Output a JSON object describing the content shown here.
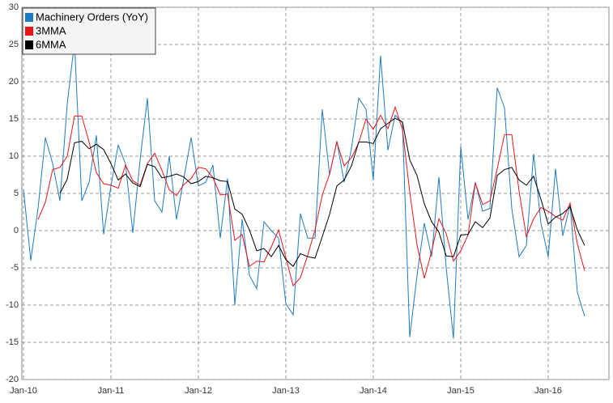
{
  "chart_data": {
    "type": "line",
    "categories": [
      "Jan-10",
      null,
      null,
      null,
      null,
      null,
      null,
      null,
      null,
      null,
      null,
      null,
      "Jan-11",
      null,
      null,
      null,
      null,
      null,
      null,
      null,
      null,
      null,
      null,
      null,
      "Jan-12",
      null,
      null,
      null,
      null,
      null,
      null,
      null,
      null,
      null,
      null,
      null,
      "Jan-13",
      null,
      null,
      null,
      null,
      null,
      null,
      null,
      null,
      null,
      null,
      null,
      "Jan-14",
      null,
      null,
      null,
      null,
      null,
      null,
      null,
      null,
      null,
      null,
      null,
      "Jan-15",
      null,
      null,
      null,
      null,
      null,
      null,
      null,
      null,
      null,
      null,
      null,
      "Jan-16",
      null,
      null,
      null,
      null,
      null
    ],
    "series": [
      {
        "name": "Machinery Orders (YoY)",
        "color": "#1f7bc1",
        "width": 1,
        "values": [
          5.5,
          -4,
          3,
          12.5,
          9,
          4,
          17,
          25.3,
          4,
          6.5,
          12.8,
          -0.5,
          6,
          11.5,
          9,
          -0.3,
          9.5,
          17.8,
          4,
          2.5,
          10,
          1.5,
          7,
          12.5,
          6,
          6.5,
          8.8,
          -1,
          7,
          -10,
          1.5,
          -6,
          -7.8,
          1.2,
          0,
          -1,
          -9.8,
          -11.3,
          2.3,
          -1,
          -1,
          16.3,
          7.5,
          12,
          6.5,
          11,
          17.8,
          16.3,
          6.8,
          23.5,
          10.8,
          15.5,
          14.5,
          -14.3,
          -6,
          1,
          -3.5,
          7.2,
          -5,
          -14.5,
          11.3,
          1.5,
          6.5,
          2.6,
          3,
          19.2,
          16.5,
          3,
          -3.5,
          -2,
          10.3,
          1,
          -3.5,
          8.3,
          -0.7,
          3.5,
          -8.3,
          -11.5
        ]
      },
      {
        "name": "3MMA",
        "color": "#e8161b",
        "width": 1,
        "values": [
          null,
          null,
          1.5,
          3.8,
          8.2,
          8.5,
          10,
          15.4,
          15.4,
          11.9,
          7.8,
          6.3,
          6.1,
          5.7,
          8.8,
          6.7,
          6.1,
          9,
          10.4,
          8.1,
          5.5,
          4.7,
          6.2,
          7,
          8.5,
          8.3,
          7.1,
          4.8,
          4.9,
          -1.3,
          -0.5,
          -4.8,
          -4.1,
          -4.2,
          -2.2,
          0.1,
          -3.6,
          -7.4,
          -6.3,
          -3.3,
          0.1,
          4.8,
          7.6,
          11.9,
          8.7,
          9.8,
          11.8,
          15,
          13.6,
          15.5,
          13.7,
          16.6,
          13.6,
          5.2,
          -1.9,
          -6.4,
          -2.8,
          1.6,
          -0.4,
          -4.1,
          -2.7,
          -0.6,
          6.4,
          3.5,
          4,
          8.3,
          12.9,
          12.9,
          5.3,
          -0.8,
          1.6,
          3.1,
          2.6,
          1.9,
          1.4,
          3.7,
          -1.8,
          -5.4
        ]
      },
      {
        "name": "6MMA",
        "color": "#000000",
        "width": 1,
        "values": [
          null,
          null,
          null,
          null,
          null,
          5,
          6.9,
          11.8,
          12,
          11,
          11.6,
          10.9,
          9,
          6.8,
          7.6,
          6.4,
          5.9,
          8.9,
          8.6,
          7.1,
          7.3,
          7.6,
          7.2,
          6.3,
          6.6,
          7.3,
          7.1,
          6.7,
          6.6,
          2.9,
          2.2,
          0.1,
          -2.7,
          -2.4,
          -3.5,
          -2,
          -3.9,
          -4.8,
          -3.1,
          -3.5,
          -3.7,
          -0.8,
          2.2,
          6,
          6.8,
          8.7,
          11.9,
          11.9,
          11.7,
          13.7,
          14.4,
          15.1,
          14.6,
          9.5,
          7.4,
          3.6,
          1.2,
          -0.2,
          -3.4,
          -3.5,
          -0.6,
          -0.5,
          1.2,
          0.4,
          1.7,
          7.4,
          8.2,
          8.5,
          6.8,
          6.1,
          7.3,
          4.2,
          0.9,
          1.8,
          2.3,
          3.2,
          0.1,
          -2
        ]
      }
    ],
    "ylim": [
      -20,
      30
    ],
    "yticks": [
      -20,
      -15,
      -10,
      -5,
      0,
      5,
      10,
      15,
      20,
      25,
      30
    ],
    "grid": true,
    "legend": "upper left"
  }
}
